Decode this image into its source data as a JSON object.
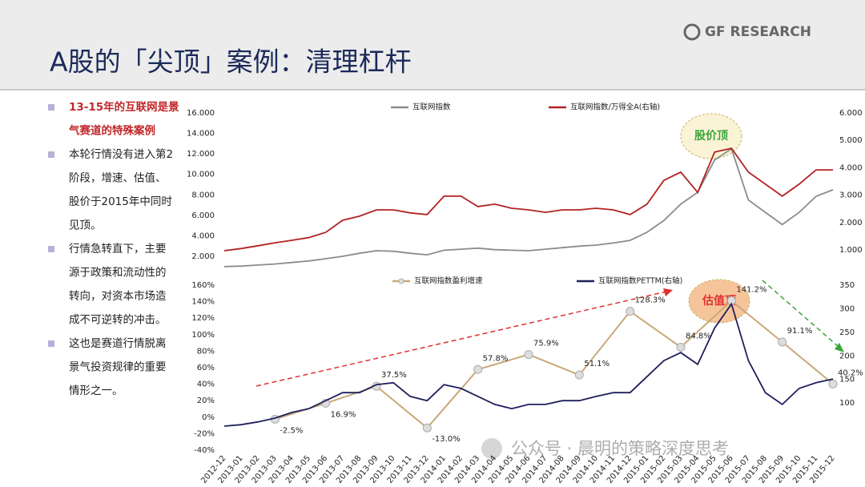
{
  "header": {
    "title": "A股的「尖顶」案例：清理杠杆",
    "logo": "GF RESEARCH"
  },
  "bullets": [
    [
      "13-15年的互联网是景",
      "气赛道的特殊案例"
    ],
    [
      "本轮行情没有进入第2",
      "阶段，增速、估值、",
      "股价于2015年中同时",
      "见顶。"
    ],
    [
      "行情急转直下，主要",
      "源于政策和流动性的",
      "转向，对资本市场造",
      "成不可逆转的冲击。"
    ],
    [
      "这也是赛道行情脱离",
      "景气投资规律的重要",
      "情形之一。"
    ]
  ],
  "watermark": "公众号 · 晨明的策略深度思考",
  "chart_data": [
    {
      "type": "line",
      "annotations": [
        "股价顶"
      ],
      "ylim": [
        440,
        16000
      ],
      "yticks": [
        {
          "value": 2000,
          "label": "2.000"
        },
        {
          "value": 4000,
          "label": "4.000"
        },
        {
          "value": 6000,
          "label": "6.000"
        },
        {
          "value": 8000,
          "label": "8.000"
        },
        {
          "value": 10000,
          "label": "10.000"
        },
        {
          "value": 12000,
          "label": "12.000"
        },
        {
          "value": 14000,
          "label": "14.000"
        },
        {
          "value": 16000,
          "label": "16.000"
        }
      ],
      "y2lim": [
        0.18,
        6
      ],
      "y2ticks": [
        {
          "value": 1,
          "label": "1.000"
        },
        {
          "value": 2,
          "label": "2.000"
        },
        {
          "value": 3,
          "label": "3.000"
        },
        {
          "value": 4,
          "label": "4.000"
        },
        {
          "value": 5,
          "label": "5.000"
        },
        {
          "value": 6,
          "label": "6.000"
        }
      ],
      "series": [
        {
          "name": "互联网指数",
          "color": "#8c8c8c",
          "values": [
            1000,
            1050,
            1150,
            1250,
            1400,
            1550,
            1770,
            2000,
            2300,
            2550,
            2500,
            2300,
            2150,
            2600,
            2700,
            2800,
            2650,
            2600,
            2550,
            2700,
            2850,
            3000,
            3100,
            3300,
            3560,
            4350,
            5500,
            7100,
            8250,
            11400,
            12500,
            7500,
            6300,
            5100,
            6300,
            7860,
            8500
          ]
        },
        {
          "name": "互联网指数/万得全A(右轴)",
          "color": "#b22222",
          "axis": "y2",
          "values": [
            0.97,
            1.05,
            1.15,
            1.26,
            1.35,
            1.45,
            1.64,
            2.08,
            2.23,
            2.46,
            2.46,
            2.35,
            2.29,
            2.96,
            2.96,
            2.58,
            2.67,
            2.52,
            2.46,
            2.37,
            2.46,
            2.46,
            2.52,
            2.46,
            2.29,
            2.67,
            3.54,
            3.84,
            3.1,
            4.57,
            4.71,
            3.84,
            3.4,
            2.96,
            3.4,
            3.92,
            3.92
          ]
        }
      ]
    },
    {
      "type": "line",
      "annotations": [
        "估值顶"
      ],
      "categories": [
        "2012-12",
        "2013-01",
        "2013-02",
        "2013-03",
        "2013-04",
        "2013-05",
        "2013-06",
        "2013-07",
        "2013-08",
        "2013-09",
        "2013-10",
        "2013-11",
        "2013-12",
        "2014-01",
        "2014-02",
        "2014-03",
        "2014-04",
        "2014-05",
        "2014-06",
        "2014-07",
        "2014-08",
        "2014-09",
        "2014-10",
        "2014-11",
        "2014-12",
        "2015-01",
        "2015-02",
        "2015-03",
        "2015-04",
        "2015-05",
        "2015-06",
        "2015-07",
        "2015-08",
        "2015-09",
        "2015-10",
        "2015-11",
        "2015-12"
      ],
      "ylim": [
        -40,
        160
      ],
      "yticks": [
        {
          "value": -40,
          "label": "-40%"
        },
        {
          "value": -20,
          "label": "-20%"
        },
        {
          "value": 0,
          "label": "0%"
        },
        {
          "value": 20,
          "label": "20%"
        },
        {
          "value": 40,
          "label": "40%"
        },
        {
          "value": 60,
          "label": "60%"
        },
        {
          "value": 80,
          "label": "80%"
        },
        {
          "value": 100,
          "label": "100%"
        },
        {
          "value": 120,
          "label": "120%"
        },
        {
          "value": 140,
          "label": "140%"
        },
        {
          "value": 160,
          "label": "160%"
        }
      ],
      "y2lim": [
        0,
        350
      ],
      "y2ticks": [
        100,
        150,
        200,
        250,
        300,
        350
      ],
      "series": [
        {
          "name": "互联网指数盈利增速",
          "color": "#c8a878",
          "x": [
            "2013-03",
            "2013-06",
            "2013-09",
            "2013-12",
            "2014-03",
            "2014-06",
            "2014-09",
            "2014-12",
            "2015-03",
            "2015-06",
            "2015-09",
            "2015-12"
          ],
          "values": [
            -2.5,
            16.9,
            37.5,
            -13.0,
            57.8,
            75.9,
            51.1,
            128.3,
            84.8,
            141.2,
            91.1,
            40.2
          ],
          "value_labels": [
            "-2.5%",
            "16.9%",
            "37.5%",
            "-13.0%",
            "57.8%",
            "75.9%",
            "51.1%",
            "128.3%",
            "84.8%",
            "141.2%",
            "91.1%",
            "40.2%"
          ]
        },
        {
          "name": "互联网指数PETTM(右轴)",
          "color": "#1f1f5c",
          "axis": "y2",
          "values": [
            51,
            54,
            60,
            68,
            80,
            88,
            105,
            122,
            122,
            139,
            143,
            114,
            105,
            139,
            131,
            114,
            97,
            88,
            97,
            97,
            105,
            105,
            114,
            122,
            122,
            156,
            190,
            207,
            182,
            259,
            310,
            190,
            122,
            97,
            131,
            143,
            151
          ]
        }
      ]
    }
  ]
}
